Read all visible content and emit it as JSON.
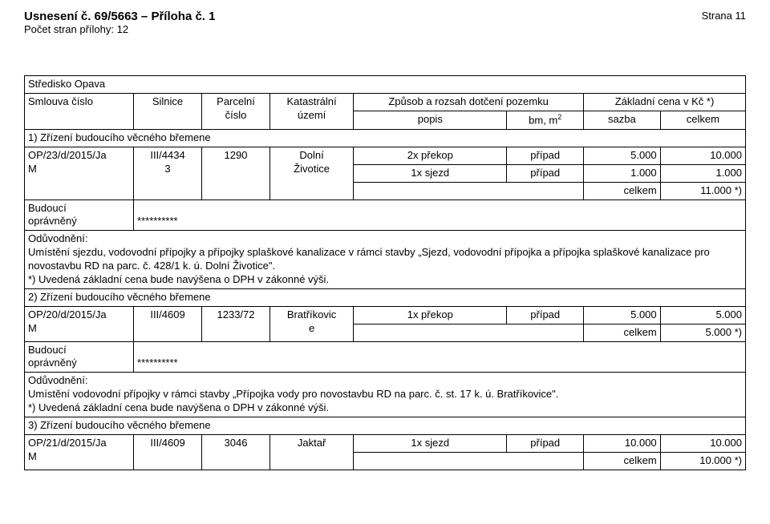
{
  "header": {
    "title": "Usnesení č. 69/5663 – Příloha č. 1",
    "subtitle": "Počet stran přílohy: 12",
    "page": "Strana 11"
  },
  "section_label": "Středisko Opava",
  "thead": {
    "c1": "Smlouva číslo",
    "c2": "Silnice",
    "c3": "Parcelní číslo",
    "c4": "Katastrální území",
    "c5": "Způsob a rozsah dotčení pozemku",
    "c6": "Základní cena v Kč *)",
    "r2_popis": "popis",
    "r2_bm": "bm, m",
    "r2_bm_sup": "2",
    "r2_sazba": "sazba",
    "r2_celkem": "celkem"
  },
  "s1": {
    "title": "1) Zřízení budoucího věcného břemene",
    "cell1_l1": "OP/23/d/2015/Ja",
    "cell1_l2": "M",
    "cell2_l1": "III/4434",
    "cell2_l2": "3",
    "cell3": "1290",
    "cell4_l1": "Dolní",
    "cell4_l2": "Životice",
    "dot1_popis": "2x překop",
    "dot1_bm": "případ",
    "dot1_sazba": "5.000",
    "dot1_celkem": "10.000",
    "dot2_popis": "1x sjezd",
    "dot2_bm": "případ",
    "dot2_sazba": "1.000",
    "dot2_celkem": "1.000",
    "sum_label": "celkem",
    "sum_val": "11.000 *)",
    "bud_l1": "Budoucí",
    "bud_l2": "oprávněný",
    "stars": "**********",
    "oduv_label": "Odůvodnění:",
    "oduv_l1": "Umístění sjezdu, vodovodní přípojky a přípojky splaškové kanalizace v rámci stavby „Sjezd, vodovodní přípojka a přípojka splaškové kanalizace pro novostavbu RD na parc. č. 428/1 k. ú. Dolní Životice\".",
    "oduv_l2": "*) Uvedená základní cena bude navýšena o DPH v zákonné výši."
  },
  "s2": {
    "title": "2) Zřízení budoucího věcného břemene",
    "cell1_l1": "OP/20/d/2015/Ja",
    "cell1_l2": "M",
    "cell2": "III/4609",
    "cell3": "1233/72",
    "cell4_l1": "Bratříkovic",
    "cell4_l2": "e",
    "dot1_popis": "1x překop",
    "dot1_bm": "případ",
    "dot1_sazba": "5.000",
    "dot1_celkem": "5.000",
    "sum_label": "celkem",
    "sum_val": "5.000 *)",
    "bud_l1": "Budoucí",
    "bud_l2": "oprávněný",
    "stars": "**********",
    "oduv_label": "Odůvodnění:",
    "oduv_l1": "Umístění vodovodní přípojky v rámci stavby „Přípojka vody pro novostavbu RD na parc. č. st. 17 k. ú. Bratříkovice\".",
    "oduv_l2": "*) Uvedená základní cena bude navýšena o DPH v zákonné výši."
  },
  "s3": {
    "title": "3) Zřízení budoucího věcného břemene",
    "cell1_l1": "OP/21/d/2015/Ja",
    "cell1_l2": "M",
    "cell2": "III/4609",
    "cell3": "3046",
    "cell4": "Jaktař",
    "dot1_popis": "1x sjezd",
    "dot1_bm": "případ",
    "dot1_sazba": "10.000",
    "dot1_celkem": "10.000",
    "sum_label": "celkem",
    "sum_val": "10.000 *)"
  },
  "colwidths": {
    "c1": "128px",
    "c2": "80px",
    "c3": "80px",
    "c4": "98px",
    "c5": "180px",
    "c6": "90px",
    "c7": "90px",
    "c8": "100px"
  }
}
